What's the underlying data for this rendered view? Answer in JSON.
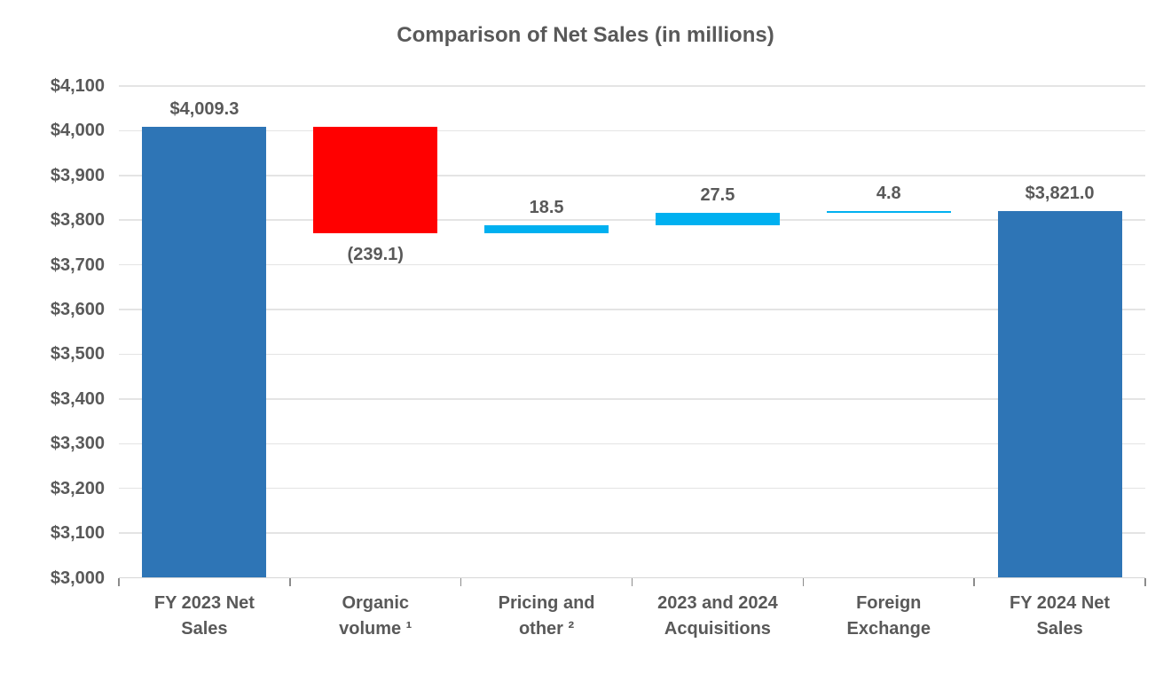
{
  "chart_data": {
    "type": "waterfall",
    "title": "Comparison of Net Sales (in millions)",
    "categories": [
      {
        "name": "FY 2023 Net Sales",
        "lines": [
          "FY 2023 Net",
          "Sales"
        ]
      },
      {
        "name": "Organic volume",
        "lines": [
          "Organic",
          "volume ¹"
        ]
      },
      {
        "name": "Pricing and other",
        "lines": [
          "Pricing and",
          "other ²"
        ]
      },
      {
        "name": "2023 and 2024 Acquisitions",
        "lines": [
          "2023 and 2024",
          "Acquisitions"
        ]
      },
      {
        "name": "Foreign Exchange",
        "lines": [
          "Foreign",
          "Exchange"
        ]
      },
      {
        "name": "FY 2024 Net Sales",
        "lines": [
          "FY 2024 Net",
          "Sales"
        ]
      }
    ],
    "bars": [
      {
        "name": "FY 2023 Net Sales",
        "from": 3000,
        "to": 4009.3,
        "value": 4009.3,
        "label": "$4,009.3",
        "label_position": "above",
        "color_role": "total"
      },
      {
        "name": "Organic volume",
        "from": 4009.3,
        "to": 3770.2,
        "value": -239.1,
        "label": "(239.1)",
        "label_position": "below",
        "color_role": "decrease"
      },
      {
        "name": "Pricing and other",
        "from": 3770.2,
        "to": 3788.7,
        "value": 18.5,
        "label": "18.5",
        "label_position": "above",
        "color_role": "increase"
      },
      {
        "name": "2023 and 2024 Acquisitions",
        "from": 3788.7,
        "to": 3816.2,
        "value": 27.5,
        "label": "27.5",
        "label_position": "above",
        "color_role": "increase"
      },
      {
        "name": "Foreign Exchange",
        "from": 3816.2,
        "to": 3821.0,
        "value": 4.8,
        "label": "4.8",
        "label_position": "above",
        "color_role": "increase"
      },
      {
        "name": "FY 2024 Net Sales",
        "from": 3000,
        "to": 3821.0,
        "value": 3821.0,
        "label": "$3,821.0",
        "label_position": "above",
        "color_role": "total"
      }
    ],
    "y_axis": {
      "min": 3000,
      "max": 4100,
      "step": 100,
      "tick_labels": [
        "$4,100",
        "$4,000",
        "$3,900",
        "$3,800",
        "$3,700",
        "$3,600",
        "$3,500",
        "$3,400",
        "$3,300",
        "$3,200",
        "$3,100",
        "$3,000"
      ]
    },
    "grid": true,
    "legend": false,
    "colors": {
      "total": "#2E75B6",
      "decrease": "#FF0000",
      "increase": "#00B0F0",
      "text": "#595959",
      "gridline": "#E4E4E4",
      "axis_line": "#D6D6D6",
      "tick_mark": "#8C8C8C"
    }
  }
}
